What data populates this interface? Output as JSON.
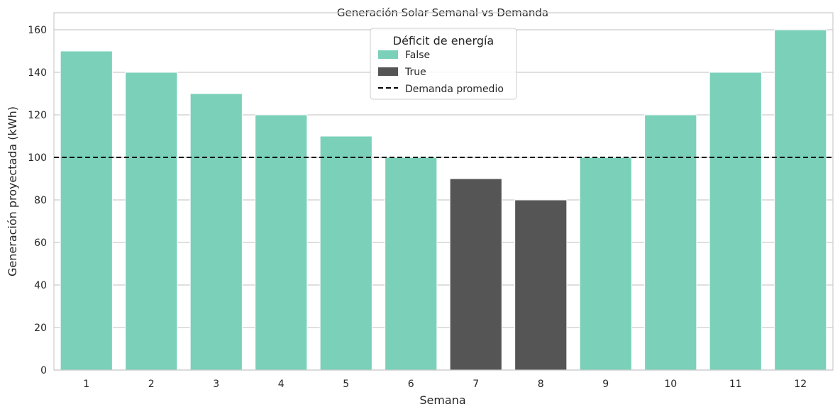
{
  "chart_data": {
    "type": "bar",
    "title": "Generación Solar Semanal vs Demanda",
    "xlabel": "Semana",
    "ylabel": "Generación proyectada (kWh)",
    "categories": [
      "1",
      "2",
      "3",
      "4",
      "5",
      "6",
      "7",
      "8",
      "9",
      "10",
      "11",
      "12"
    ],
    "values": [
      150,
      140,
      130,
      120,
      110,
      100,
      90,
      80,
      100,
      120,
      140,
      160
    ],
    "hue": [
      "False",
      "False",
      "False",
      "False",
      "False",
      "False",
      "True",
      "True",
      "False",
      "False",
      "False",
      "False"
    ],
    "yticks": [
      0,
      20,
      40,
      60,
      80,
      100,
      120,
      140,
      160
    ],
    "ylim": [
      0,
      168
    ],
    "grid": "horizontal",
    "reference_line": {
      "label": "Demanda promedio",
      "value": 100,
      "style": "dashed",
      "color": "#000000"
    },
    "legend": {
      "title": "Déficit de energía",
      "placement": "top-center",
      "entries": [
        {
          "label": "False",
          "color": "#7ad0b8"
        },
        {
          "label": "True",
          "color": "#555555"
        },
        {
          "label": "Demanda promedio",
          "color": "#000000"
        }
      ]
    },
    "colors": {
      "False": "#7ad0b8",
      "True": "#555555"
    }
  }
}
